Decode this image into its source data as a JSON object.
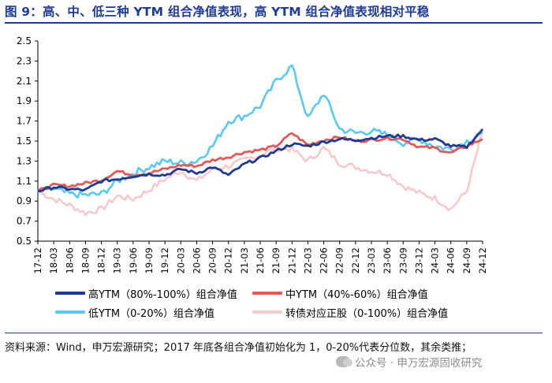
{
  "title": "图 9：高、中、低三种 YTM 组合净值表现，高 YTM 组合净值表现相对平稳",
  "source": "资料来源：Wind，申万宏源研究；2017 年底各组合净值初始化为 1，0-20%代表分位数，其余类推；",
  "watermark": "公众号 · 申万宏源固收研究",
  "colors": {
    "title": "#1f3a93",
    "high": "#1f3a93",
    "mid": "#e05a5a",
    "low": "#5ac8f0",
    "cb": "#f7c9cc"
  },
  "chart_data": {
    "type": "line",
    "ylim": [
      0.5,
      2.5
    ],
    "yticks": [
      "0.5",
      "0.7",
      "0.9",
      "1.1",
      "1.3",
      "1.5",
      "1.7",
      "1.9",
      "2.1",
      "2.3",
      "2.5"
    ],
    "x_tick_labels": [
      "17-12",
      "18-03",
      "18-06",
      "18-09",
      "18-12",
      "19-03",
      "19-06",
      "19-09",
      "19-12",
      "20-03",
      "20-06",
      "20-09",
      "20-12",
      "21-03",
      "21-06",
      "21-09",
      "21-12",
      "22-03",
      "22-06",
      "22-09",
      "22-12",
      "23-03",
      "23-06",
      "23-09",
      "23-12",
      "24-03",
      "24-06",
      "24-09",
      "24-12"
    ],
    "series": [
      {
        "name": "高YTM（80%-100%）组合净值",
        "key": "high",
        "values": [
          1.0,
          1.04,
          1.02,
          1.01,
          1.1,
          1.12,
          1.15,
          1.17,
          1.16,
          1.22,
          1.18,
          1.24,
          1.16,
          1.27,
          1.33,
          1.4,
          1.47,
          1.45,
          1.49,
          1.52,
          1.51,
          1.53,
          1.55,
          1.55,
          1.51,
          1.52,
          1.45,
          1.44,
          1.62
        ]
      },
      {
        "name": "中YTM（40%-60%）组合净值",
        "key": "mid",
        "values": [
          1.0,
          1.06,
          1.05,
          1.08,
          1.11,
          1.2,
          1.16,
          1.18,
          1.22,
          1.26,
          1.25,
          1.31,
          1.34,
          1.39,
          1.41,
          1.45,
          1.58,
          1.46,
          1.51,
          1.54,
          1.5,
          1.51,
          1.53,
          1.52,
          1.44,
          1.43,
          1.38,
          1.45,
          1.52
        ]
      },
      {
        "name": "低YTM（0-20%）组合净值",
        "key": "low",
        "values": [
          1.0,
          1.02,
          0.97,
          0.96,
          0.97,
          1.1,
          1.18,
          1.24,
          1.3,
          1.28,
          1.3,
          1.45,
          1.7,
          1.75,
          1.85,
          2.1,
          2.25,
          1.72,
          1.98,
          1.62,
          1.58,
          1.6,
          1.56,
          1.48,
          1.52,
          1.45,
          1.42,
          1.5,
          1.58
        ]
      },
      {
        "name": "转债对应正股（0-100%）组合净值",
        "key": "cb",
        "values": [
          1.0,
          0.92,
          0.86,
          0.78,
          0.82,
          0.95,
          0.92,
          1.01,
          1.12,
          1.2,
          1.1,
          1.22,
          1.25,
          1.31,
          1.36,
          1.43,
          1.42,
          1.3,
          1.43,
          1.28,
          1.24,
          1.2,
          1.18,
          1.05,
          0.98,
          0.93,
          0.82,
          1.0,
          1.6
        ]
      }
    ]
  }
}
